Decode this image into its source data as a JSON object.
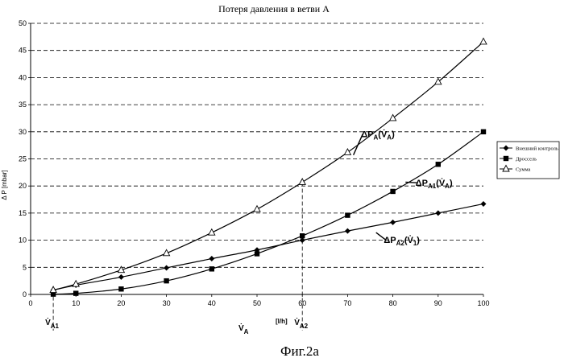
{
  "chart_data": {
    "type": "line",
    "title": "Потеря давления в ветви А",
    "ylabel": "Δ P [mbar]",
    "xlabel": "",
    "xlim": [
      0,
      100
    ],
    "ylim": [
      0,
      50
    ],
    "x_ticks": [
      0,
      10,
      20,
      30,
      40,
      50,
      60,
      70,
      80,
      90,
      100
    ],
    "y_ticks": [
      0,
      5,
      10,
      15,
      20,
      25,
      30,
      35,
      40,
      45,
      50
    ],
    "grid": "horizontal dashed",
    "legend_position": "right",
    "series": [
      {
        "name": "Внешний контроль",
        "marker": "diamond",
        "x": [
          5,
          10,
          20,
          30,
          40,
          50,
          60,
          70,
          80,
          90,
          100
        ],
        "y": [
          0.8,
          1.7,
          3.2,
          4.9,
          6.6,
          8.2,
          10.0,
          11.7,
          13.3,
          15.0,
          16.7
        ]
      },
      {
        "name": "Дроссель",
        "marker": "square",
        "x": [
          5,
          10,
          20,
          30,
          40,
          50,
          60,
          70,
          80,
          90,
          100
        ],
        "y": [
          0.05,
          0.2,
          1.0,
          2.5,
          4.7,
          7.5,
          10.8,
          14.6,
          19.0,
          24.0,
          30.0
        ]
      },
      {
        "name": "Сумма",
        "marker": "triangle",
        "x": [
          5,
          10,
          20,
          30,
          40,
          50,
          60,
          70,
          80,
          90,
          100
        ],
        "y": [
          0.8,
          1.9,
          4.5,
          7.6,
          11.4,
          15.7,
          20.7,
          26.2,
          32.5,
          39.2,
          46.6
        ]
      }
    ],
    "annotations": [
      {
        "text": "ΔP_A(V̇_A)",
        "base": "ΔP",
        "sub": "A",
        "arg": "(V̇",
        "arg_sub": "A",
        "close": ")",
        "x": 73,
        "y": 29
      },
      {
        "text": "ΔP_A1(V̇_A)",
        "base": "ΔP",
        "sub": "A1",
        "arg": "(V̇",
        "arg_sub": "A",
        "close": ")",
        "x": 85,
        "y": 20
      },
      {
        "text": "ΔP_A2(V̇_1)",
        "base": "ΔP",
        "sub": "A2",
        "arg": "(V̇",
        "arg_sub": "1",
        "close": ")",
        "x": 78,
        "y": 9.5
      }
    ],
    "x_markers": [
      {
        "label": "V̇",
        "sub": "A1",
        "x": 5
      },
      {
        "label": "V̇",
        "sub": "A2",
        "x": 60
      }
    ],
    "x_axis_symbol": {
      "label": "V̇",
      "sub": "A"
    },
    "x_unit": "[l/h]",
    "caption": "Фиг.2а"
  }
}
